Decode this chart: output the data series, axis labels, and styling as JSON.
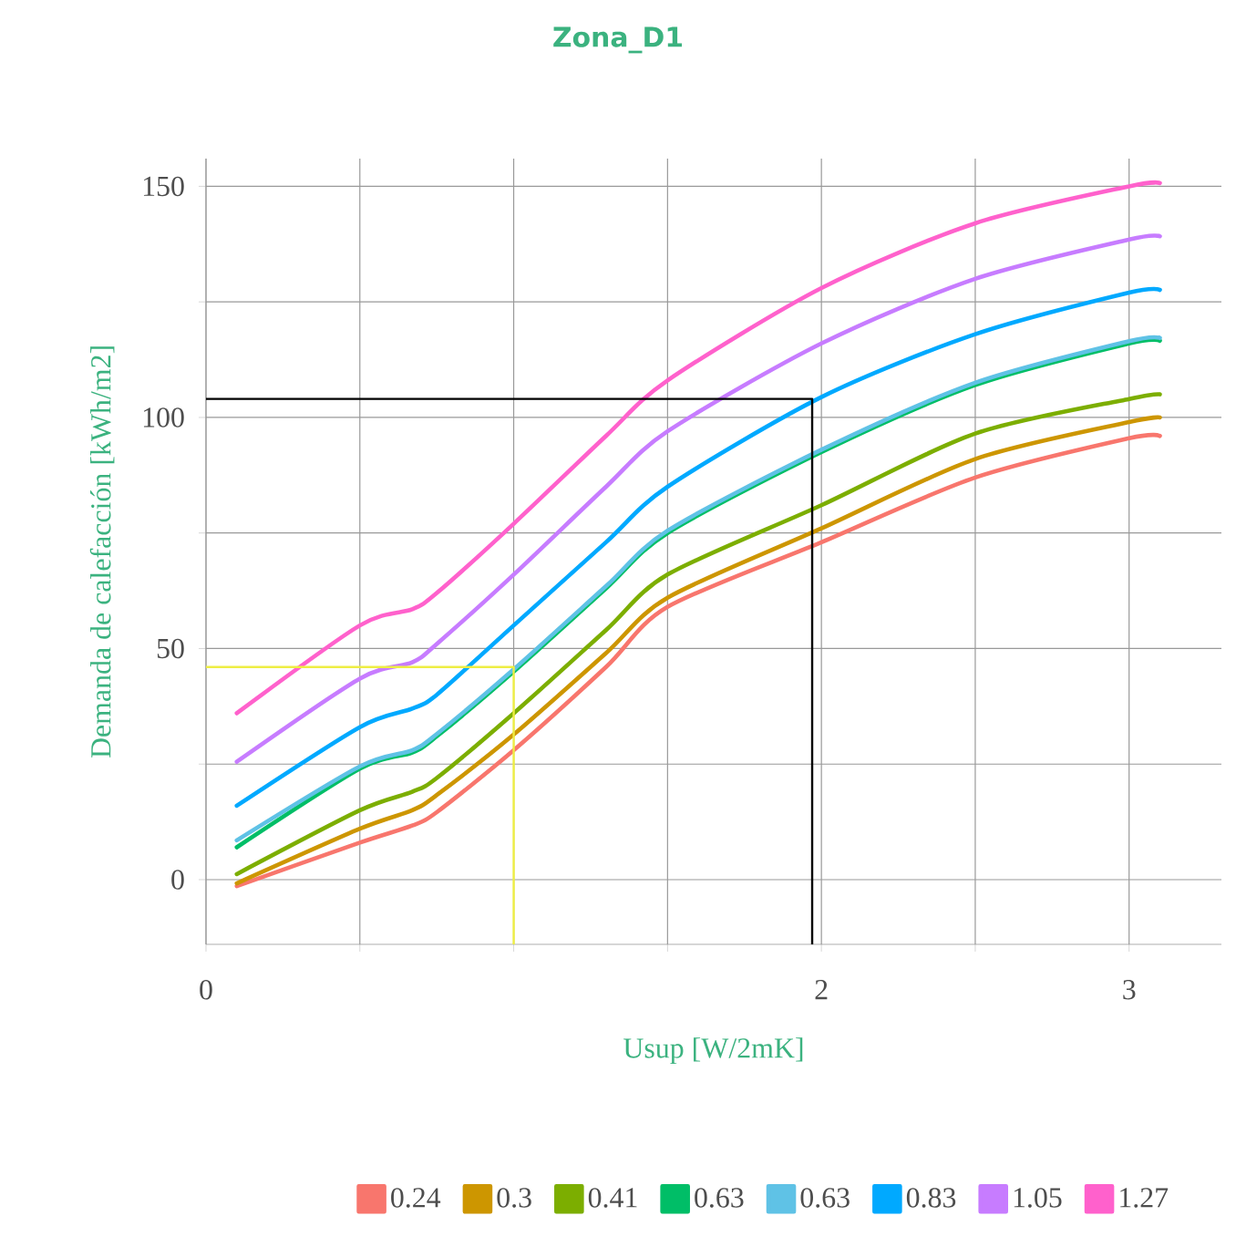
{
  "chart_data": {
    "type": "line",
    "title": "Zona_D1",
    "xlabel": "Usup [W/2mK]",
    "ylabel": "Demanda de calefacción [kWh/m2]",
    "xlim": [
      0,
      3.3
    ],
    "ylim": [
      -14,
      156
    ],
    "xticks": [
      0,
      {
        "value": 0.5,
        "label": null
      },
      {
        "value": 1,
        "label": null
      },
      {
        "value": 1.5,
        "label": null
      },
      2,
      {
        "value": 2.5,
        "label": null
      },
      3
    ],
    "yticks": [
      0,
      {
        "value": 25,
        "label": null
      },
      50,
      {
        "value": 75,
        "label": null
      },
      100,
      {
        "value": 125,
        "label": null
      },
      150
    ],
    "grid": true,
    "legend": "bottom",
    "x": [
      0.1,
      0.5,
      0.67,
      0.75,
      1.0,
      1.3,
      1.5,
      2.0,
      2.5,
      3.0,
      3.1
    ],
    "series": [
      {
        "name": "0.24",
        "color": "#f8766d",
        "values": [
          -1.4,
          8,
          11.7,
          14.6,
          28,
          46,
          59,
          73,
          87,
          95.5,
          96
        ]
      },
      {
        "name": "0.3",
        "color": "#cd9600",
        "values": [
          -0.8,
          11,
          15,
          18.3,
          31.4,
          49,
          61,
          76,
          91,
          99,
          100
        ]
      },
      {
        "name": "0.41",
        "color": "#7cae00",
        "values": [
          1.2,
          15,
          19,
          22,
          36,
          54,
          66,
          81,
          96.5,
          104,
          105
        ]
      },
      {
        "name": "0.63",
        "color": "#00be67",
        "values": [
          7,
          24,
          27.5,
          31,
          45,
          63,
          75,
          92.5,
          107,
          116,
          116.6
        ]
      },
      {
        "name": "0.63",
        "color": "#5fc2e6",
        "values": [
          8.5,
          24.5,
          28,
          31.5,
          45.5,
          63.5,
          75.5,
          93,
          107.5,
          116.5,
          117.2
        ]
      },
      {
        "name": "0.83",
        "color": "#00a9ff",
        "values": [
          16,
          33,
          37,
          40,
          55,
          73,
          85,
          104.4,
          118,
          127,
          127.6
        ]
      },
      {
        "name": "1.05",
        "color": "#c77cff",
        "values": [
          25.5,
          43.5,
          47,
          51,
          66,
          85,
          97,
          116,
          130,
          138.5,
          139.2
        ]
      },
      {
        "name": "1.27",
        "color": "#ff61cc",
        "values": [
          36,
          55,
          58.5,
          62,
          77,
          96,
          108,
          128,
          142,
          150,
          150.7
        ]
      },
      {
        "color": "#000000",
        "x": [
          0,
          1.97,
          1.97
        ],
        "values": [
          104,
          104,
          -14
        ]
      },
      {
        "color": "#eeee44",
        "x": [
          0,
          1.0,
          1.0
        ],
        "values": [
          46,
          46,
          -14
        ]
      }
    ]
  }
}
